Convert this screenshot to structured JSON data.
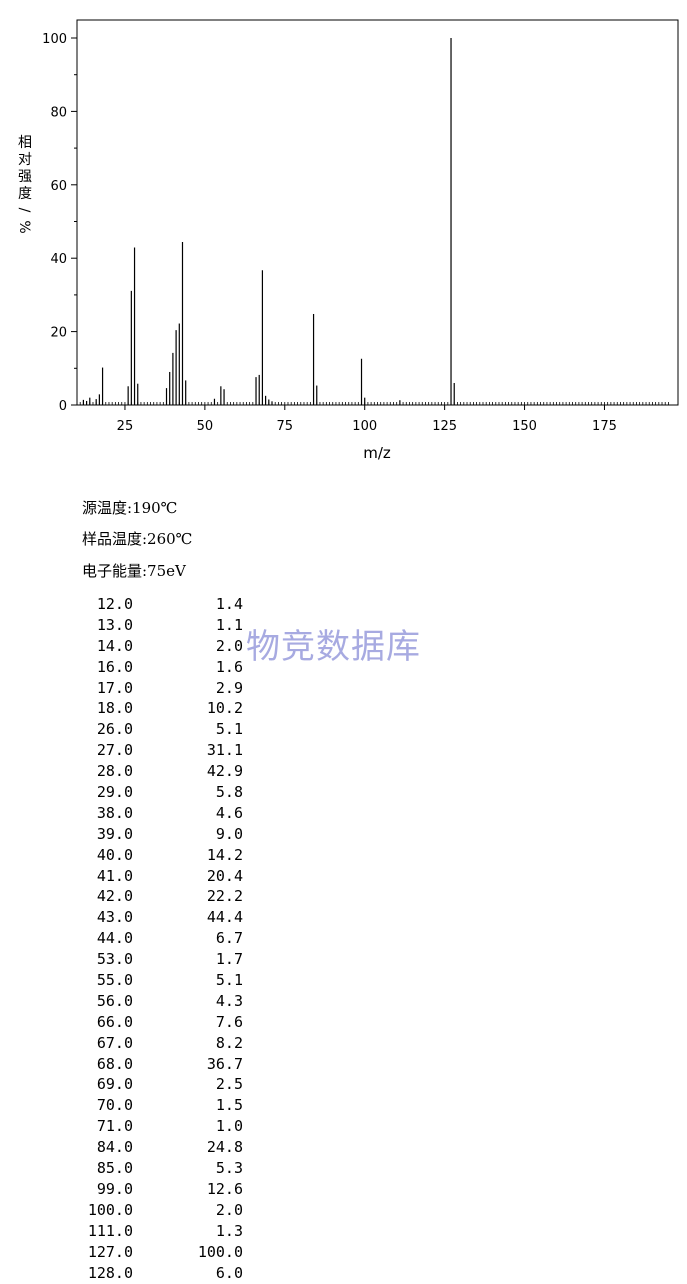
{
  "chart_data": {
    "type": "bar",
    "xlabel": "m/z",
    "ylabel": "相对强度/%",
    "xlim": [
      10,
      198
    ],
    "ylim": [
      0,
      105
    ],
    "x_ticks": [
      25,
      50,
      75,
      100,
      125,
      150,
      175
    ],
    "y_ticks": [
      0,
      20,
      40,
      60,
      80,
      100
    ],
    "grid": false,
    "peaks": [
      {
        "mz": 12.0,
        "intensity": 1.4
      },
      {
        "mz": 13.0,
        "intensity": 1.1
      },
      {
        "mz": 14.0,
        "intensity": 2.0
      },
      {
        "mz": 16.0,
        "intensity": 1.6
      },
      {
        "mz": 17.0,
        "intensity": 2.9
      },
      {
        "mz": 18.0,
        "intensity": 10.2
      },
      {
        "mz": 26.0,
        "intensity": 5.1
      },
      {
        "mz": 27.0,
        "intensity": 31.1
      },
      {
        "mz": 28.0,
        "intensity": 42.9
      },
      {
        "mz": 29.0,
        "intensity": 5.8
      },
      {
        "mz": 38.0,
        "intensity": 4.6
      },
      {
        "mz": 39.0,
        "intensity": 9.0
      },
      {
        "mz": 40.0,
        "intensity": 14.2
      },
      {
        "mz": 41.0,
        "intensity": 20.4
      },
      {
        "mz": 42.0,
        "intensity": 22.2
      },
      {
        "mz": 43.0,
        "intensity": 44.4
      },
      {
        "mz": 44.0,
        "intensity": 6.7
      },
      {
        "mz": 53.0,
        "intensity": 1.7
      },
      {
        "mz": 55.0,
        "intensity": 5.1
      },
      {
        "mz": 56.0,
        "intensity": 4.3
      },
      {
        "mz": 66.0,
        "intensity": 7.6
      },
      {
        "mz": 67.0,
        "intensity": 8.2
      },
      {
        "mz": 68.0,
        "intensity": 36.7
      },
      {
        "mz": 69.0,
        "intensity": 2.5
      },
      {
        "mz": 70.0,
        "intensity": 1.5
      },
      {
        "mz": 71.0,
        "intensity": 1.0
      },
      {
        "mz": 84.0,
        "intensity": 24.8
      },
      {
        "mz": 85.0,
        "intensity": 5.3
      },
      {
        "mz": 99.0,
        "intensity": 12.6
      },
      {
        "mz": 100.0,
        "intensity": 2.0
      },
      {
        "mz": 111.0,
        "intensity": 1.3
      },
      {
        "mz": 127.0,
        "intensity": 100.0
      },
      {
        "mz": 128.0,
        "intensity": 6.0
      }
    ]
  },
  "conditions": {
    "source_temp": "源温度:190℃",
    "sample_temp": "样品温度:260℃",
    "electron_energy": "电子能量:75eV"
  },
  "watermark": "物竞数据库",
  "table": {
    "rows": [
      {
        "mz": "12.0",
        "intensity": "1.4"
      },
      {
        "mz": "13.0",
        "intensity": "1.1"
      },
      {
        "mz": "14.0",
        "intensity": "2.0"
      },
      {
        "mz": "16.0",
        "intensity": "1.6"
      },
      {
        "mz": "17.0",
        "intensity": "2.9"
      },
      {
        "mz": "18.0",
        "intensity": "10.2"
      },
      {
        "mz": "26.0",
        "intensity": "5.1"
      },
      {
        "mz": "27.0",
        "intensity": "31.1"
      },
      {
        "mz": "28.0",
        "intensity": "42.9"
      },
      {
        "mz": "29.0",
        "intensity": "5.8"
      },
      {
        "mz": "38.0",
        "intensity": "4.6"
      },
      {
        "mz": "39.0",
        "intensity": "9.0"
      },
      {
        "mz": "40.0",
        "intensity": "14.2"
      },
      {
        "mz": "41.0",
        "intensity": "20.4"
      },
      {
        "mz": "42.0",
        "intensity": "22.2"
      },
      {
        "mz": "43.0",
        "intensity": "44.4"
      },
      {
        "mz": "44.0",
        "intensity": "6.7"
      },
      {
        "mz": "53.0",
        "intensity": "1.7"
      },
      {
        "mz": "55.0",
        "intensity": "5.1"
      },
      {
        "mz": "56.0",
        "intensity": "4.3"
      },
      {
        "mz": "66.0",
        "intensity": "7.6"
      },
      {
        "mz": "67.0",
        "intensity": "8.2"
      },
      {
        "mz": "68.0",
        "intensity": "36.7"
      },
      {
        "mz": "69.0",
        "intensity": "2.5"
      },
      {
        "mz": "70.0",
        "intensity": "1.5"
      },
      {
        "mz": "71.0",
        "intensity": "1.0"
      },
      {
        "mz": "84.0",
        "intensity": "24.8"
      },
      {
        "mz": "85.0",
        "intensity": "5.3"
      },
      {
        "mz": "99.0",
        "intensity": "12.6"
      },
      {
        "mz": "100.0",
        "intensity": "2.0"
      },
      {
        "mz": "111.0",
        "intensity": "1.3"
      },
      {
        "mz": "127.0",
        "intensity": "100.0"
      },
      {
        "mz": "128.0",
        "intensity": "6.0"
      }
    ]
  }
}
